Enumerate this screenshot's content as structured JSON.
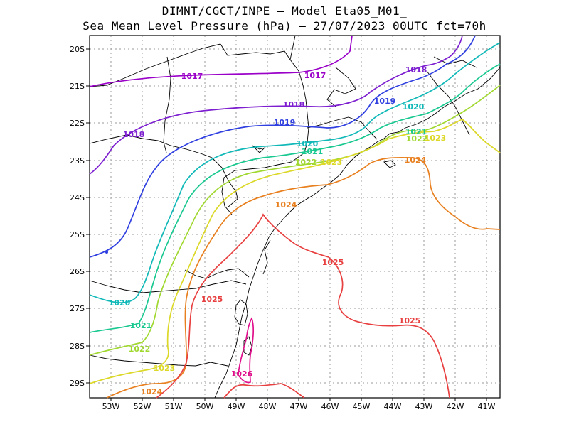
{
  "title_line1": "DIMNT/CGCT/INPE –  Model Eta05_M01_",
  "title_line2": "Sea Mean Level Pressure (hPa) – 27/07/2023 00UTC fct=70h",
  "lon_labels": [
    "53W",
    "52W",
    "51W",
    "50W",
    "49W",
    "48W",
    "47W",
    "46W",
    "45W",
    "44W",
    "43W",
    "42W",
    "41W"
  ],
  "lat_labels": [
    "20S",
    "21S",
    "22S",
    "23S",
    "24S",
    "25S",
    "26S",
    "27S",
    "28S",
    "29S"
  ],
  "contour_labels": {
    "c1017a": "1017",
    "c1017b": "1017",
    "c1018a": "1018",
    "c1018b": "1018",
    "c1018c": "1018",
    "c1019": "1019",
    "c1020a": "1020",
    "c1020b": "1020",
    "c1020c": "1020",
    "c1021a": "1021",
    "c1021b": "1021",
    "c1021c": "1021",
    "c1022a": "1022",
    "c1022b": "1022",
    "c1022c": "1022",
    "c1023a": "1023",
    "c1023b": "1023",
    "c1023c": "1023",
    "c1024a": "1024",
    "c1024b": "1024",
    "c1024c": "1024",
    "c1025a": "1025",
    "c1025b": "1025",
    "c1025c": "1025",
    "c1026": "1026"
  },
  "colors": {
    "1017": "#9a00c8",
    "1018": "#7d1fd0",
    "1019": "#2f3fe0",
    "1020": "#10b8b8",
    "1021": "#18c890",
    "1022": "#a0d830",
    "1023": "#dcd828",
    "1024": "#e88020",
    "1025": "#e84040",
    "1026": "#e0108c"
  }
}
